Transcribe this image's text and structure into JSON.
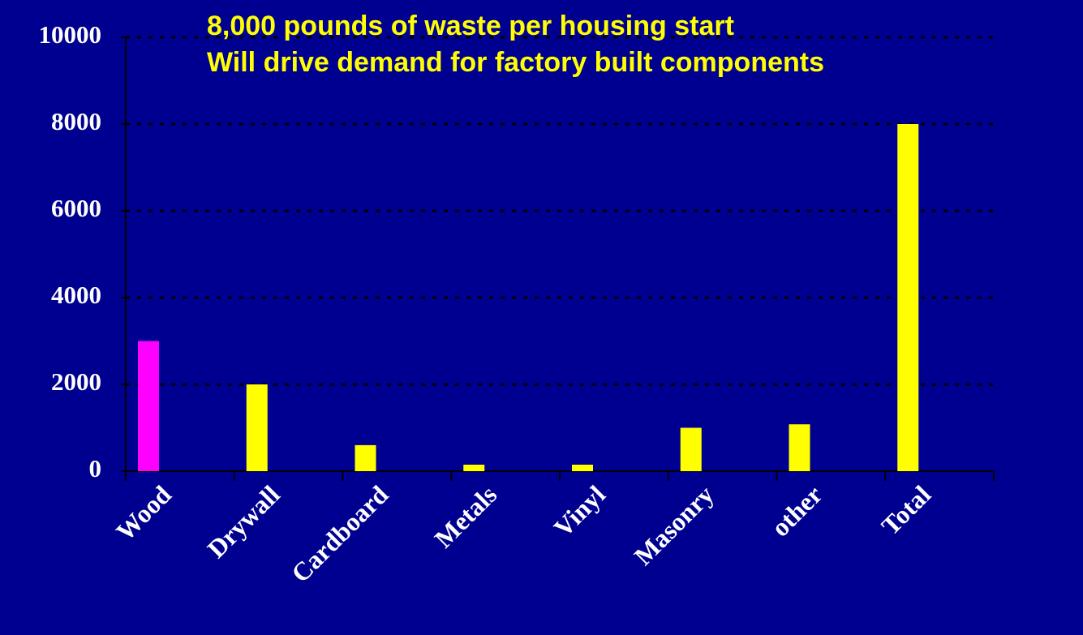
{
  "chart_data": {
    "type": "bar",
    "title_lines": [
      "8,000 pounds of waste per housing start",
      "Will drive demand for factory built components"
    ],
    "categories": [
      "Wood",
      "Drywall",
      "Cardboard",
      "Metals",
      "Vinyl",
      "Masonry",
      "other",
      "Total"
    ],
    "values": [
      3000,
      2000,
      600,
      150,
      150,
      1000,
      1080,
      8000
    ],
    "colors": [
      "#ff00ff",
      "#ffff00",
      "#ffff00",
      "#ffff00",
      "#ffff00",
      "#ffff00",
      "#ffff00",
      "#ffff00"
    ],
    "ylim": [
      0,
      10000
    ],
    "yticks": [
      0,
      2000,
      4000,
      6000,
      8000,
      10000
    ],
    "grid": true
  }
}
